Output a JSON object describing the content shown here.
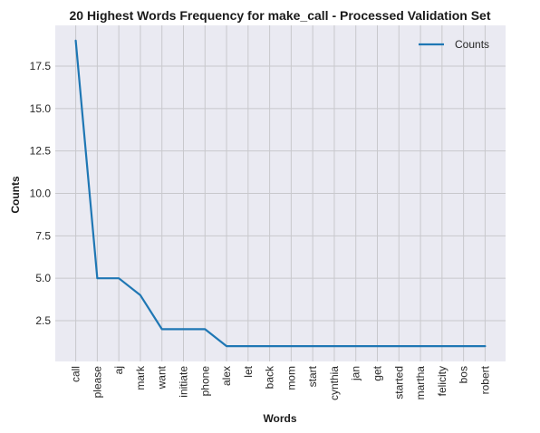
{
  "chart_data": {
    "type": "line",
    "title": "20 Highest Words Frequency for make_call - Processed Validation Set",
    "xlabel": "Words",
    "ylabel": "Counts",
    "categories": [
      "call",
      "please",
      "aj",
      "mark",
      "want",
      "initiate",
      "phone",
      "alex",
      "let",
      "back",
      "mom",
      "start",
      "cynthia",
      "jan",
      "get",
      "started",
      "martha",
      "felicity",
      "bos",
      "robert"
    ],
    "series": [
      {
        "name": "Counts",
        "values": [
          19,
          5,
          5,
          4,
          2,
          2,
          2,
          1,
          1,
          1,
          1,
          1,
          1,
          1,
          1,
          1,
          1,
          1,
          1,
          1
        ]
      }
    ],
    "ylim": [
      0.1,
      19.9
    ],
    "yticks": [
      2.5,
      5.0,
      7.5,
      10.0,
      12.5,
      15.0,
      17.5
    ],
    "ytick_labels": [
      "2.5",
      "5.0",
      "7.5",
      "10.0",
      "12.5",
      "15.0",
      "17.5"
    ],
    "grid": true,
    "legend_position": "top-right",
    "colors": {
      "line": "#1f77b4",
      "background": "#eaeaf2",
      "grid": "#c8c8cc"
    }
  }
}
